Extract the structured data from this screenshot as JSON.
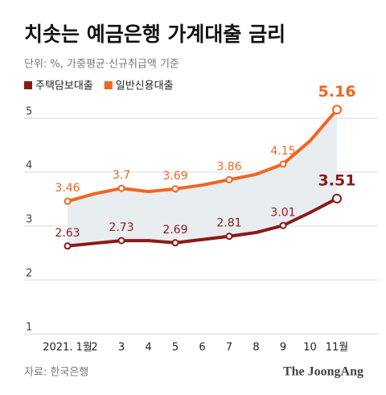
{
  "chart_data": {
    "type": "line",
    "title": "치솟는 예금은행 가계대출 금리",
    "subtitle": "단위: %, 가중평균·신규취급액 기준",
    "source": "자료: 한국은행",
    "credit": "The JoongAng",
    "categories": [
      "2021. 1월",
      "2",
      "3",
      "4",
      "5",
      "6",
      "7",
      "8",
      "9",
      "10",
      "11월"
    ],
    "series": [
      {
        "name": "주택담보대출",
        "color": "#8b1a1a",
        "values": [
          2.63,
          2.68,
          2.73,
          2.73,
          2.69,
          2.75,
          2.81,
          2.88,
          3.01,
          3.25,
          3.51
        ],
        "value_labels": [
          "2.63",
          null,
          "2.73",
          null,
          "2.69",
          null,
          "2.81",
          null,
          "3.01",
          null,
          "3.51"
        ]
      },
      {
        "name": "일반신용대출",
        "color": "#f26522",
        "values": [
          3.46,
          3.6,
          3.7,
          3.64,
          3.69,
          3.76,
          3.86,
          3.96,
          4.15,
          4.58,
          5.16
        ],
        "value_labels": [
          "3.46",
          null,
          "3.7",
          null,
          "3.69",
          null,
          "3.86",
          null,
          "4.15",
          null,
          "5.16"
        ]
      }
    ],
    "band_color": "#e8edf0",
    "ylim": [
      1,
      5.5
    ],
    "yticks": [
      1,
      2,
      3,
      4,
      5
    ],
    "grid": true
  }
}
